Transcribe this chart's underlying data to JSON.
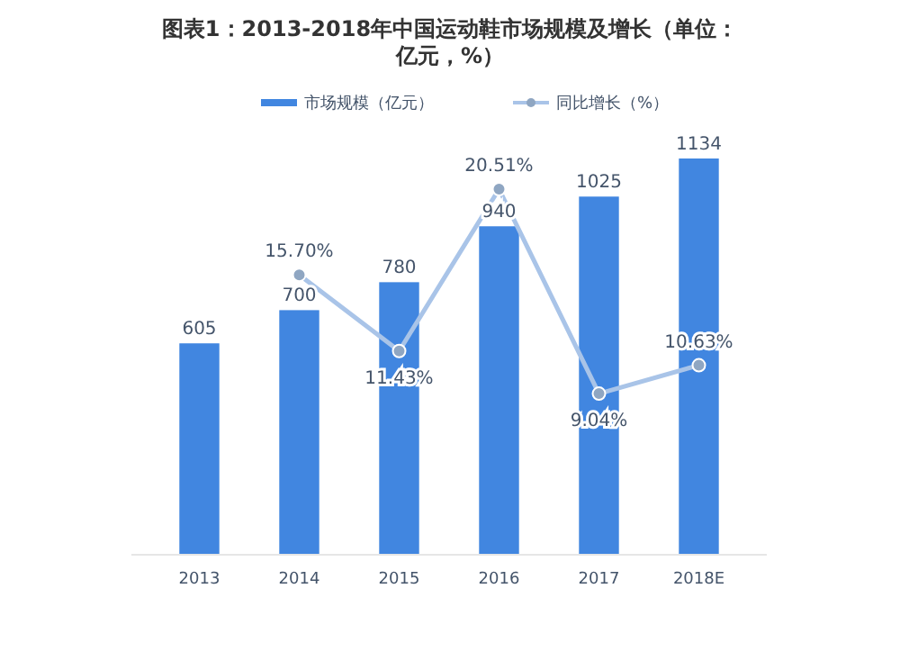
{
  "chart_data": {
    "type": "bar",
    "title": "图表1：2013-2018年中国运动鞋市场规模及增长（单位：亿元，%）",
    "categories": [
      "2013",
      "2014",
      "2015",
      "2016",
      "2017",
      "2018E"
    ],
    "series": [
      {
        "name": "市场规模（亿元）",
        "color": "#4186e0",
        "values": [
          605,
          700,
          780,
          940,
          1025,
          1134
        ]
      },
      {
        "name": "同比增长（%）",
        "type": "line",
        "axis": "y2",
        "color": "#a9c4e8",
        "values": [
          null,
          15.7,
          11.43,
          20.51,
          9.04,
          10.63
        ],
        "value_labels": [
          null,
          "15.70%",
          "11.43%",
          "20.51%",
          "9.04%",
          "10.63%"
        ]
      }
    ],
    "data_labels": true,
    "tick_labels": "x",
    "legend": "top",
    "grid": false,
    "marker": "circle"
  }
}
